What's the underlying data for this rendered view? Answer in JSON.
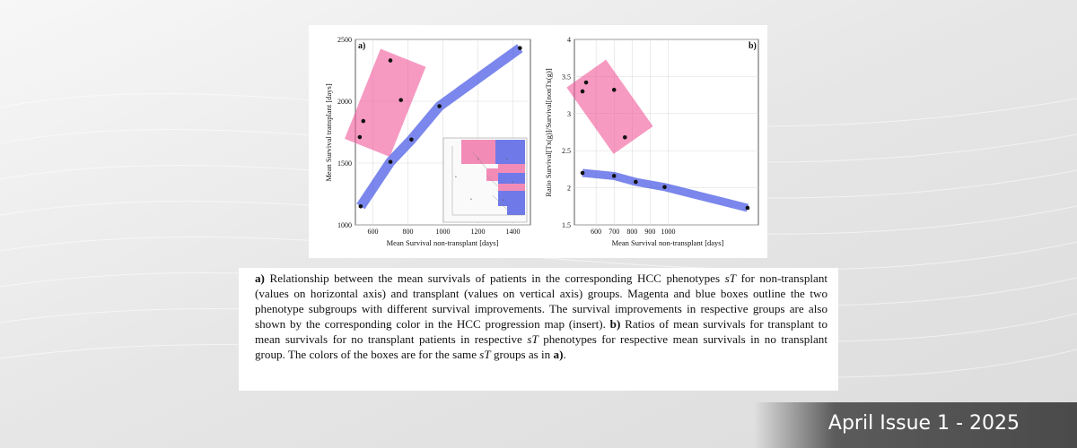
{
  "issue_label": "April Issue 1 - 2025",
  "caption": {
    "a_label": "a)",
    "a_text_1": " Relationship between the mean survivals of patients in the corresponding HCC phenotypes ",
    "sT_1": "sT",
    "a_text_2": " for non-transplant (values on horizontal axis) and transplant (values on vertical axis) groups. Magenta and blue boxes outline the two phenotype subgroups with different survival improvements. The survival improvements in respective groups are also shown by the corresponding color in the HCC progression map (insert). ",
    "b_label": "b)",
    "b_text_1": " Ratios of mean survivals for transplant to mean survivals for no transplant patients in respective ",
    "sT_2": "sT",
    "b_text_2": " phenotypes for respective mean survivals in no transplant group. The colors of the boxes are for the same ",
    "sT_3": "sT",
    "b_text_3": " groups as in ",
    "a_ref": "a)",
    "end": "."
  },
  "colors": {
    "magenta": "#f0579a",
    "blue": "#4f5fe6",
    "point": "#111111",
    "bar": "#5b5b5b"
  },
  "chart_data": [
    {
      "type": "scatter",
      "panel_label": "a)",
      "xlabel": "Mean Survival non-transplant [days]",
      "ylabel": "Mean Survival transplant [days]",
      "xlim": [
        500,
        1500
      ],
      "ylim": [
        1000,
        2500
      ],
      "xticks": [
        "600",
        "800",
        "1000",
        "1200",
        "1400"
      ],
      "yticks": [
        "1000",
        "1500",
        "2000",
        "2500"
      ],
      "grid": true,
      "magenta_points": [
        {
          "x": 700,
          "y": 2330
        },
        {
          "x": 760,
          "y": 2010
        },
        {
          "x": 545,
          "y": 1840
        },
        {
          "x": 525,
          "y": 1710
        }
      ],
      "blue_points": [
        {
          "x": 530,
          "y": 1150
        },
        {
          "x": 700,
          "y": 1510
        },
        {
          "x": 820,
          "y": 1690
        },
        {
          "x": 980,
          "y": 1960
        },
        {
          "x": 1440,
          "y": 2430
        }
      ],
      "inset": "HCC progression map"
    },
    {
      "type": "scatter",
      "panel_label": "b)",
      "xlabel": "Mean Survival non-transplant [days]",
      "ylabel": "Ratio Survival[Tx(g)]/Survival[nonTx(g)]",
      "xlim": [
        480,
        1500
      ],
      "ylim": [
        1.5,
        4
      ],
      "xticks": [
        "600",
        "700",
        "800",
        "900",
        "1000"
      ],
      "yticks": [
        "1.5",
        "2",
        "2.5",
        "3",
        "3.5",
        "4"
      ],
      "grid": true,
      "magenta_points": [
        {
          "x": 545,
          "y": 3.42
        },
        {
          "x": 525,
          "y": 3.3
        },
        {
          "x": 700,
          "y": 3.32
        },
        {
          "x": 760,
          "y": 2.68
        }
      ],
      "blue_points": [
        {
          "x": 525,
          "y": 2.2
        },
        {
          "x": 700,
          "y": 2.16
        },
        {
          "x": 820,
          "y": 2.08
        },
        {
          "x": 980,
          "y": 2.01
        },
        {
          "x": 1440,
          "y": 1.73
        }
      ]
    }
  ]
}
